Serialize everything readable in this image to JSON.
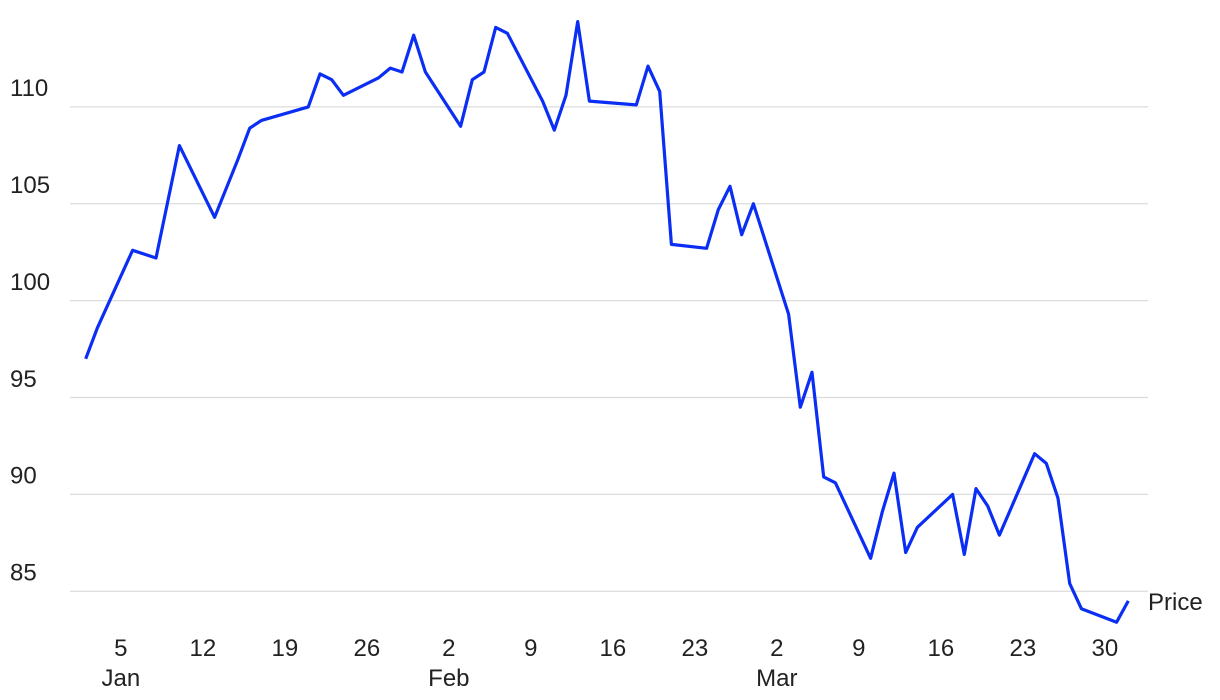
{
  "chart_data": {
    "type": "line",
    "x": [
      "01-02",
      "01-03",
      "01-06",
      "01-08",
      "01-10",
      "01-13",
      "01-15",
      "01-16",
      "01-17",
      "01-21",
      "01-22",
      "01-23",
      "01-24",
      "01-27",
      "01-28",
      "01-29",
      "01-30",
      "01-31",
      "02-03",
      "02-04",
      "02-05",
      "02-06",
      "02-07",
      "02-10",
      "02-11",
      "02-12",
      "02-13",
      "02-14",
      "02-18",
      "02-19",
      "02-20",
      "02-21",
      "02-24",
      "02-25",
      "02-26",
      "02-27",
      "02-28",
      "03-03",
      "03-04",
      "03-05",
      "03-06",
      "03-07",
      "03-10",
      "03-11",
      "03-12",
      "03-13",
      "03-14",
      "03-17",
      "03-18",
      "03-19",
      "03-20",
      "03-21",
      "03-24",
      "03-25",
      "03-26",
      "03-27",
      "03-28",
      "03-31",
      "04-01"
    ],
    "series": [
      {
        "name": "Price",
        "color": "#0b2ef5",
        "values": [
          97.0,
          98.6,
          102.6,
          102.2,
          108.0,
          104.3,
          107.3,
          108.9,
          109.3,
          110.0,
          111.7,
          111.4,
          110.6,
          111.5,
          112.0,
          111.8,
          113.7,
          111.8,
          109.0,
          111.4,
          111.8,
          114.1,
          113.8,
          110.3,
          108.8,
          110.6,
          114.4,
          110.3,
          110.1,
          112.1,
          110.8,
          102.9,
          102.7,
          104.7,
          105.9,
          103.4,
          105.0,
          99.3,
          94.5,
          96.3,
          90.9,
          90.6,
          86.7,
          89.1,
          91.1,
          87.0,
          88.3,
          90.0,
          86.9,
          90.3,
          89.4,
          87.9,
          92.1,
          91.6,
          89.8,
          85.4,
          84.1,
          83.4,
          84.5
        ]
      }
    ],
    "xlim": [
      "01-01",
      "04-02"
    ],
    "xticks": [
      {
        "value": "01-05",
        "label": "5"
      },
      {
        "value": "01-12",
        "label": "12"
      },
      {
        "value": "01-19",
        "label": "19"
      },
      {
        "value": "01-26",
        "label": "26"
      },
      {
        "value": "02-02",
        "label": "2"
      },
      {
        "value": "02-09",
        "label": "9"
      },
      {
        "value": "02-16",
        "label": "16"
      },
      {
        "value": "02-23",
        "label": "23"
      },
      {
        "value": "03-02",
        "label": "2"
      },
      {
        "value": "03-09",
        "label": "9"
      },
      {
        "value": "03-16",
        "label": "16"
      },
      {
        "value": "03-23",
        "label": "23"
      },
      {
        "value": "03-30",
        "label": "30"
      }
    ],
    "xmonths": [
      {
        "value": "01-05",
        "label": "Jan"
      },
      {
        "value": "02-02",
        "label": "Feb"
      },
      {
        "value": "03-02",
        "label": "Mar"
      }
    ],
    "ylim": [
      83,
      115
    ],
    "yticks": [
      85,
      90,
      95,
      100,
      105,
      110
    ],
    "grid": true
  }
}
